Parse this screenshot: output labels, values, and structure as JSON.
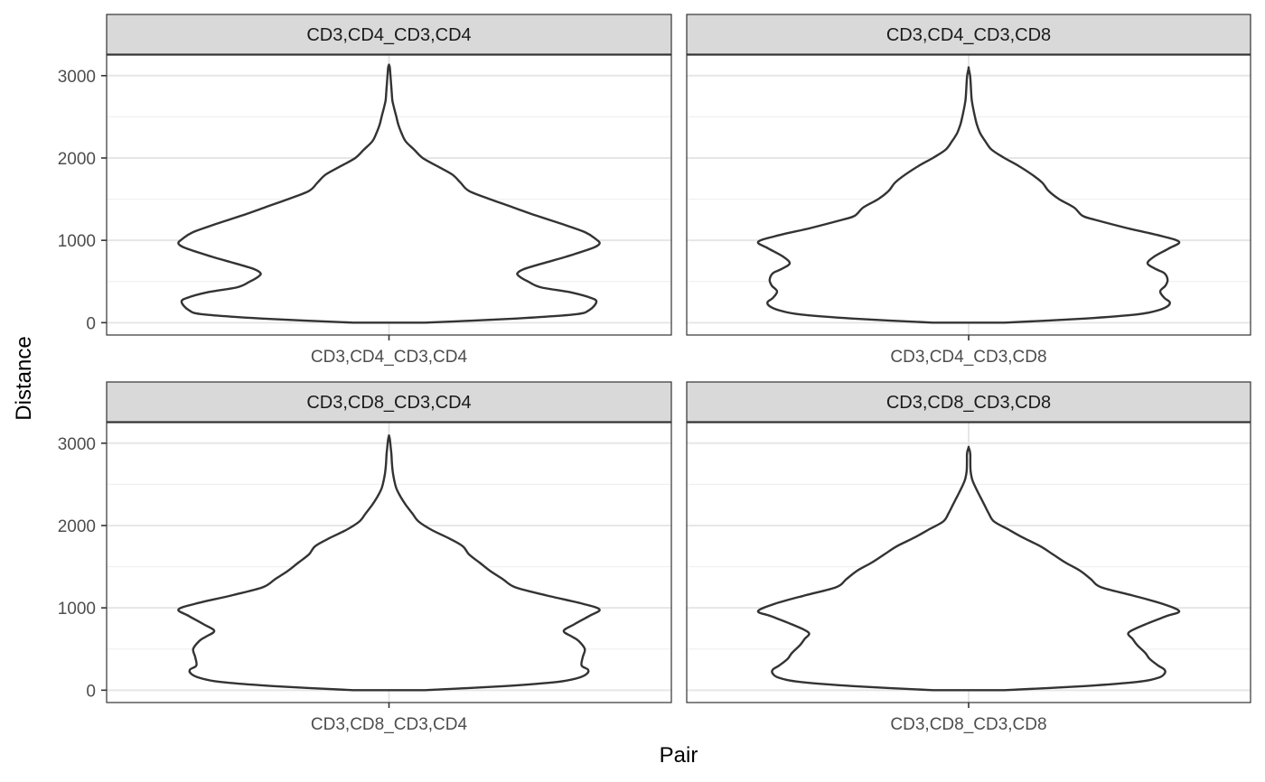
{
  "chart_data": {
    "type": "violin",
    "xlabel": "Pair",
    "ylabel": "Distance",
    "ylim": [
      -150,
      3250
    ],
    "y_ticks": [
      0,
      1000,
      2000,
      3000
    ],
    "y_tick_labels": [
      "0",
      "1000",
      "2000",
      "3000"
    ],
    "grid": true,
    "layout": "2x2 facets",
    "line_color": "#333333",
    "panels": [
      {
        "strip_label": "CD3,CD4_CD3,CD4",
        "x_tick_label": "CD3,CD4_CD3,CD4",
        "y_range": [
          0,
          3130
        ],
        "profile": [
          [
            0,
            0.17
          ],
          [
            50,
            0.6
          ],
          [
            100,
            0.88
          ],
          [
            150,
            0.95
          ],
          [
            250,
            0.985
          ],
          [
            300,
            0.96
          ],
          [
            370,
            0.86
          ],
          [
            430,
            0.72
          ],
          [
            500,
            0.66
          ],
          [
            560,
            0.62
          ],
          [
            600,
            0.61
          ],
          [
            650,
            0.64
          ],
          [
            720,
            0.73
          ],
          [
            800,
            0.84
          ],
          [
            900,
            0.96
          ],
          [
            960,
            1.0
          ],
          [
            1020,
            0.98
          ],
          [
            1100,
            0.93
          ],
          [
            1200,
            0.82
          ],
          [
            1300,
            0.7
          ],
          [
            1400,
            0.59
          ],
          [
            1500,
            0.48
          ],
          [
            1600,
            0.38
          ],
          [
            1700,
            0.34
          ],
          [
            1800,
            0.3
          ],
          [
            1900,
            0.23
          ],
          [
            2000,
            0.16
          ],
          [
            2100,
            0.12
          ],
          [
            2200,
            0.08
          ],
          [
            2300,
            0.06
          ],
          [
            2400,
            0.045
          ],
          [
            2500,
            0.035
          ],
          [
            2600,
            0.025
          ],
          [
            2700,
            0.016
          ],
          [
            2800,
            0.013
          ],
          [
            2900,
            0.01
          ],
          [
            3000,
            0.007
          ],
          [
            3100,
            0.004
          ],
          [
            3130,
            0
          ]
        ]
      },
      {
        "strip_label": "CD3,CD4_CD3,CD8",
        "x_tick_label": "CD3,CD4_CD3,CD8",
        "y_range": [
          0,
          3090
        ],
        "profile": [
          [
            0,
            0.17
          ],
          [
            50,
            0.55
          ],
          [
            100,
            0.8
          ],
          [
            150,
            0.9
          ],
          [
            200,
            0.945
          ],
          [
            250,
            0.955
          ],
          [
            300,
            0.93
          ],
          [
            380,
            0.91
          ],
          [
            450,
            0.935
          ],
          [
            520,
            0.945
          ],
          [
            600,
            0.93
          ],
          [
            650,
            0.89
          ],
          [
            720,
            0.85
          ],
          [
            800,
            0.88
          ],
          [
            900,
            0.95
          ],
          [
            980,
            1.0
          ],
          [
            1050,
            0.92
          ],
          [
            1150,
            0.75
          ],
          [
            1250,
            0.6
          ],
          [
            1300,
            0.54
          ],
          [
            1400,
            0.5
          ],
          [
            1500,
            0.43
          ],
          [
            1600,
            0.38
          ],
          [
            1700,
            0.35
          ],
          [
            1800,
            0.3
          ],
          [
            1900,
            0.24
          ],
          [
            2000,
            0.17
          ],
          [
            2100,
            0.11
          ],
          [
            2200,
            0.08
          ],
          [
            2300,
            0.055
          ],
          [
            2400,
            0.04
          ],
          [
            2500,
            0.03
          ],
          [
            2600,
            0.022
          ],
          [
            2700,
            0.015
          ],
          [
            2800,
            0.012
          ],
          [
            2900,
            0.01
          ],
          [
            3000,
            0.007
          ],
          [
            3090,
            0
          ]
        ]
      },
      {
        "strip_label": "CD3,CD8_CD3,CD4",
        "x_tick_label": "CD3,CD8_CD3,CD4",
        "y_range": [
          0,
          3090
        ],
        "profile": [
          [
            0,
            0.17
          ],
          [
            50,
            0.55
          ],
          [
            100,
            0.8
          ],
          [
            150,
            0.9
          ],
          [
            200,
            0.94
          ],
          [
            250,
            0.945
          ],
          [
            300,
            0.915
          ],
          [
            400,
            0.92
          ],
          [
            500,
            0.93
          ],
          [
            600,
            0.9
          ],
          [
            650,
            0.87
          ],
          [
            720,
            0.83
          ],
          [
            800,
            0.88
          ],
          [
            900,
            0.95
          ],
          [
            980,
            1.0
          ],
          [
            1050,
            0.92
          ],
          [
            1150,
            0.75
          ],
          [
            1250,
            0.6
          ],
          [
            1350,
            0.54
          ],
          [
            1450,
            0.48
          ],
          [
            1550,
            0.43
          ],
          [
            1650,
            0.38
          ],
          [
            1750,
            0.35
          ],
          [
            1850,
            0.28
          ],
          [
            1950,
            0.2
          ],
          [
            2050,
            0.14
          ],
          [
            2150,
            0.11
          ],
          [
            2250,
            0.08
          ],
          [
            2350,
            0.055
          ],
          [
            2450,
            0.035
          ],
          [
            2550,
            0.025
          ],
          [
            2650,
            0.018
          ],
          [
            2750,
            0.014
          ],
          [
            2850,
            0.012
          ],
          [
            2950,
            0.008
          ],
          [
            3050,
            0.004
          ],
          [
            3090,
            0
          ]
        ]
      },
      {
        "strip_label": "CD3,CD8_CD3,CD8",
        "x_tick_label": "CD3,CD8_CD3,CD8",
        "y_range": [
          0,
          2950
        ],
        "profile": [
          [
            0,
            0.17
          ],
          [
            50,
            0.55
          ],
          [
            100,
            0.8
          ],
          [
            150,
            0.9
          ],
          [
            200,
            0.93
          ],
          [
            250,
            0.93
          ],
          [
            300,
            0.9
          ],
          [
            380,
            0.86
          ],
          [
            450,
            0.84
          ],
          [
            550,
            0.8
          ],
          [
            620,
            0.78
          ],
          [
            700,
            0.76
          ],
          [
            800,
            0.84
          ],
          [
            900,
            0.94
          ],
          [
            960,
            1.0
          ],
          [
            1050,
            0.92
          ],
          [
            1150,
            0.78
          ],
          [
            1250,
            0.63
          ],
          [
            1350,
            0.58
          ],
          [
            1450,
            0.53
          ],
          [
            1550,
            0.46
          ],
          [
            1650,
            0.4
          ],
          [
            1750,
            0.34
          ],
          [
            1850,
            0.26
          ],
          [
            1950,
            0.19
          ],
          [
            2050,
            0.12
          ],
          [
            2150,
            0.095
          ],
          [
            2250,
            0.075
          ],
          [
            2350,
            0.055
          ],
          [
            2450,
            0.035
          ],
          [
            2550,
            0.018
          ],
          [
            2650,
            0.01
          ],
          [
            2750,
            0.008
          ],
          [
            2850,
            0.008
          ],
          [
            2900,
            0.006
          ],
          [
            2950,
            0
          ]
        ]
      }
    ]
  }
}
